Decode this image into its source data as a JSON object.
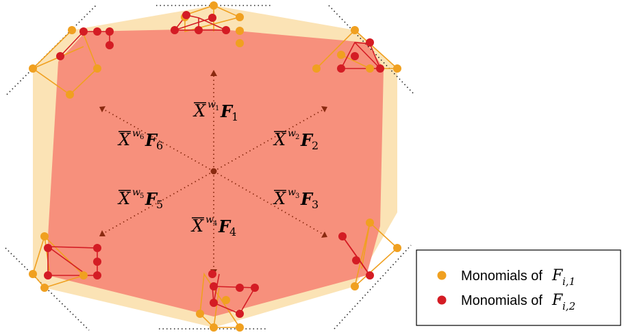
{
  "colors": {
    "outer_polygon": "#fbe3b5",
    "inner_polygon": "#f7907c",
    "orange": "#f0a020",
    "red": "#d41c24",
    "arrow": "#8a2a10",
    "support_line": "#222222"
  },
  "labels": [
    {
      "base": "X",
      "exp": "w",
      "exp_sub": "1",
      "f": "F",
      "f_sub": "1"
    },
    {
      "base": "X",
      "exp": "w",
      "exp_sub": "2",
      "f": "F",
      "f_sub": "2"
    },
    {
      "base": "X",
      "exp": "w",
      "exp_sub": "3",
      "f": "F",
      "f_sub": "3"
    },
    {
      "base": "X",
      "exp": "w",
      "exp_sub": "4",
      "f": "F",
      "f_sub": "4"
    },
    {
      "base": "X",
      "exp": "w",
      "exp_sub": "5",
      "f": "F",
      "f_sub": "5"
    },
    {
      "base": "X",
      "exp": "w",
      "exp_sub": "6",
      "f": "F",
      "f_sub": "6"
    }
  ],
  "legend": {
    "item1": {
      "text": "Monomials of ",
      "math": "F",
      "sub": "i,1"
    },
    "item2": {
      "text": "Monomials of ",
      "math": "F",
      "sub": "i,2"
    }
  }
}
